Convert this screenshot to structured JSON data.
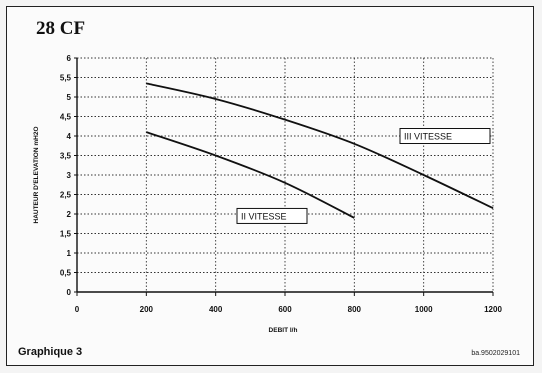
{
  "header": {
    "title": "28 CF"
  },
  "footer": {
    "caption": "Graphique 3",
    "reference": "ba.9502029101"
  },
  "chart_data": {
    "type": "line",
    "title": "28 CF",
    "xlabel": "DEBIT  l/h",
    "ylabel": "HAUTEUR D'ELEVATION mH2O",
    "xlim": [
      0,
      1200
    ],
    "ylim": [
      0,
      6
    ],
    "x_ticks": [
      "0",
      "200",
      "400",
      "600",
      "800",
      "1000",
      "1200"
    ],
    "y_ticks": [
      "0",
      "0,5",
      "1",
      "1,5",
      "2",
      "2,5",
      "3",
      "3,5",
      "4",
      "4,5",
      "5",
      "5,5",
      "6"
    ],
    "grid": true,
    "series": [
      {
        "name": "III VITESSE",
        "x": [
          200,
          400,
          600,
          800,
          1000,
          1200
        ],
        "y": [
          5.35,
          4.95,
          4.42,
          3.8,
          3.0,
          2.15
        ]
      },
      {
        "name": "II VITESSE",
        "x": [
          200,
          400,
          600,
          800
        ],
        "y": [
          4.1,
          3.5,
          2.8,
          1.9
        ]
      }
    ]
  }
}
